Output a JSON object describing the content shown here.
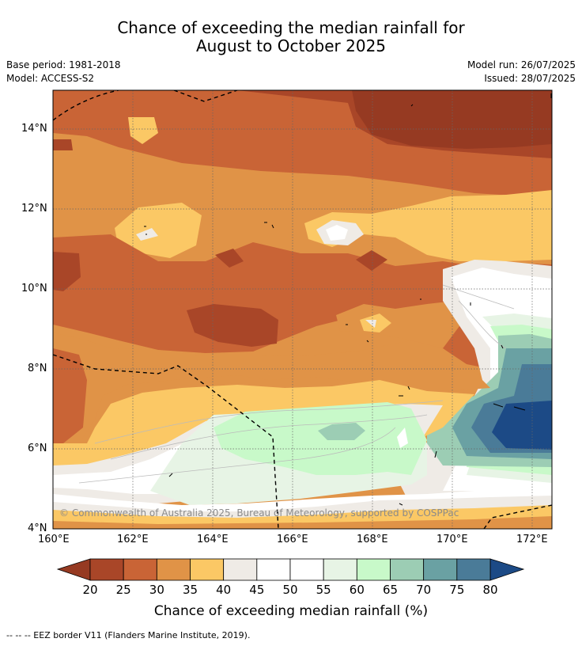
{
  "header": {
    "title_line1": "Chance of exceeding the median rainfall for",
    "title_line2": "August to October 2025",
    "base_period": "Base period: 1981-2018",
    "model": "Model: ACCESS-S2",
    "model_run": "Model run: 26/07/2025",
    "issued": "Issued: 28/07/2025"
  },
  "map": {
    "lon_ticks": [
      "160°E",
      "162°E",
      "164°E",
      "166°E",
      "168°E",
      "170°E",
      "172°E"
    ],
    "lat_ticks": [
      "14°N",
      "12°N",
      "10°N",
      "8°N",
      "6°N",
      "4°N"
    ],
    "copyright": "© Commonwealth of Australia 2025, Bureau of Meteorology, supported by COSPPac"
  },
  "colorbar": {
    "labels": [
      "20",
      "25",
      "30",
      "35",
      "40",
      "45",
      "50",
      "55",
      "60",
      "65",
      "70",
      "75",
      "80"
    ],
    "colors": [
      "#a94628",
      "#c96436",
      "#e09347",
      "#fbc865",
      "#efebe6",
      "#ffffff",
      "#ffffff",
      "#e7f4e5",
      "#c8f9c9",
      "#9ccdb4",
      "#6aa1a3",
      "#4a7b98"
    ],
    "low_color": "#963a22",
    "high_color": "#1c4a86",
    "title": "Chance of exceeding median rainfall (%)"
  },
  "footnote": "--  --  -- EEZ border V11 (Flanders Marine Institute, 2019)."
}
